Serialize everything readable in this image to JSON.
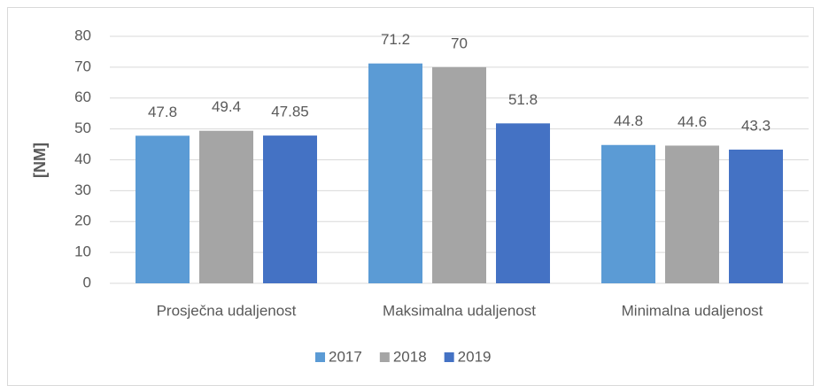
{
  "chart_data": {
    "type": "bar",
    "ylabel": "[NM]",
    "categories": [
      "Prosječna udaljenost",
      "Maksimalna udaljenost",
      "Minimalna udaljenost"
    ],
    "series": [
      {
        "name": "2017",
        "color": "#5b9bd5",
        "values": [
          47.8,
          71.2,
          44.8
        ]
      },
      {
        "name": "2018",
        "color": "#a5a5a5",
        "values": [
          49.4,
          70,
          44.6
        ]
      },
      {
        "name": "2019",
        "color": "#4472c4",
        "values": [
          47.85,
          51.8,
          43.3
        ]
      }
    ],
    "ylim": [
      0,
      80
    ],
    "yticks": [
      0,
      10,
      20,
      30,
      40,
      50,
      60,
      70,
      80
    ],
    "grid": true,
    "legend": "bottom"
  }
}
